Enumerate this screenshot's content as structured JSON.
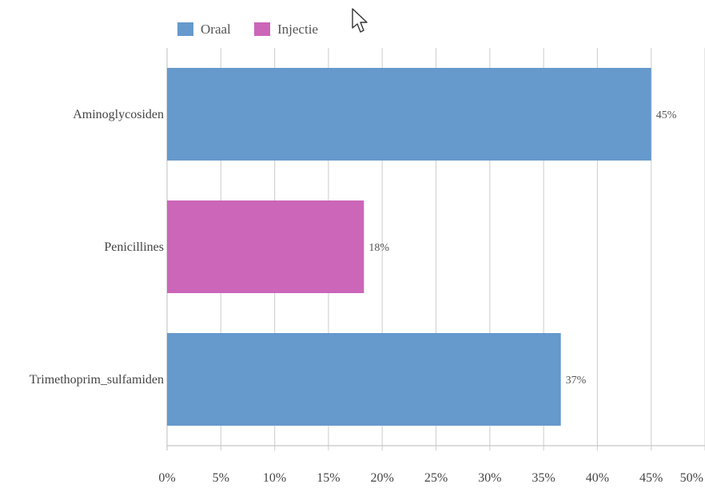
{
  "chart_data": {
    "type": "bar",
    "orientation": "horizontal",
    "categories": [
      "Aminoglycosiden",
      "Penicillines",
      "Trimethoprim_sulfamiden"
    ],
    "values": [
      45,
      18.3,
      36.6
    ],
    "value_labels": [
      "45%",
      "18%",
      "37%"
    ],
    "bar_series": [
      "Oraal",
      "Injectie",
      "Oraal"
    ],
    "series": [
      {
        "name": "Oraal",
        "color": "#6699cc"
      },
      {
        "name": "Injectie",
        "color": "#cc66b8"
      }
    ],
    "xlim": [
      0,
      50
    ],
    "x_ticks": [
      0,
      5,
      10,
      15,
      20,
      25,
      30,
      35,
      40,
      45,
      50
    ],
    "x_tick_labels": [
      "0%",
      "5%",
      "10%",
      "15%",
      "20%",
      "25%",
      "30%",
      "35%",
      "40%",
      "45%",
      "50%"
    ],
    "grid": "vertical",
    "legend_position": "top-left",
    "title": "",
    "xlabel": "",
    "ylabel": ""
  },
  "pointer": {
    "icon": "mouse-cursor-icon"
  }
}
